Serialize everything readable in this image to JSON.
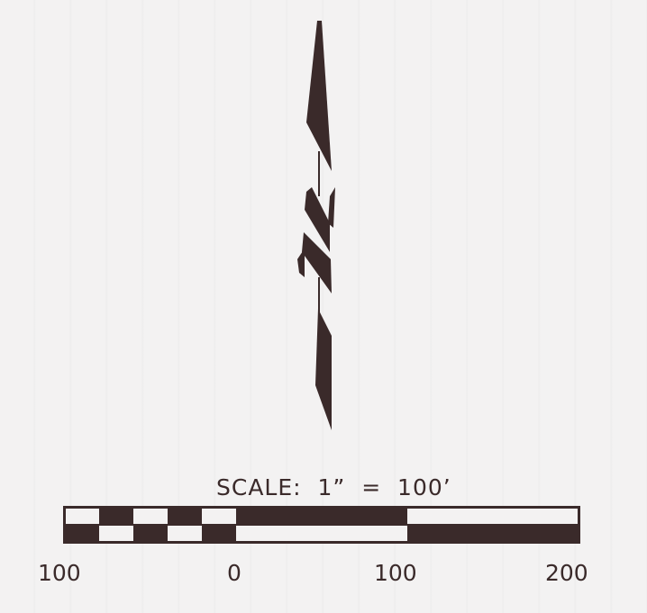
{
  "scale": {
    "title": "SCALE:  1”  =  100’",
    "labels": [
      "100",
      "0",
      "100",
      "200"
    ]
  },
  "colors": {
    "ink": "#3a2a2a",
    "paper": "#f3f2f2"
  },
  "icons": {
    "north_arrow": "north-arrow-icon"
  }
}
